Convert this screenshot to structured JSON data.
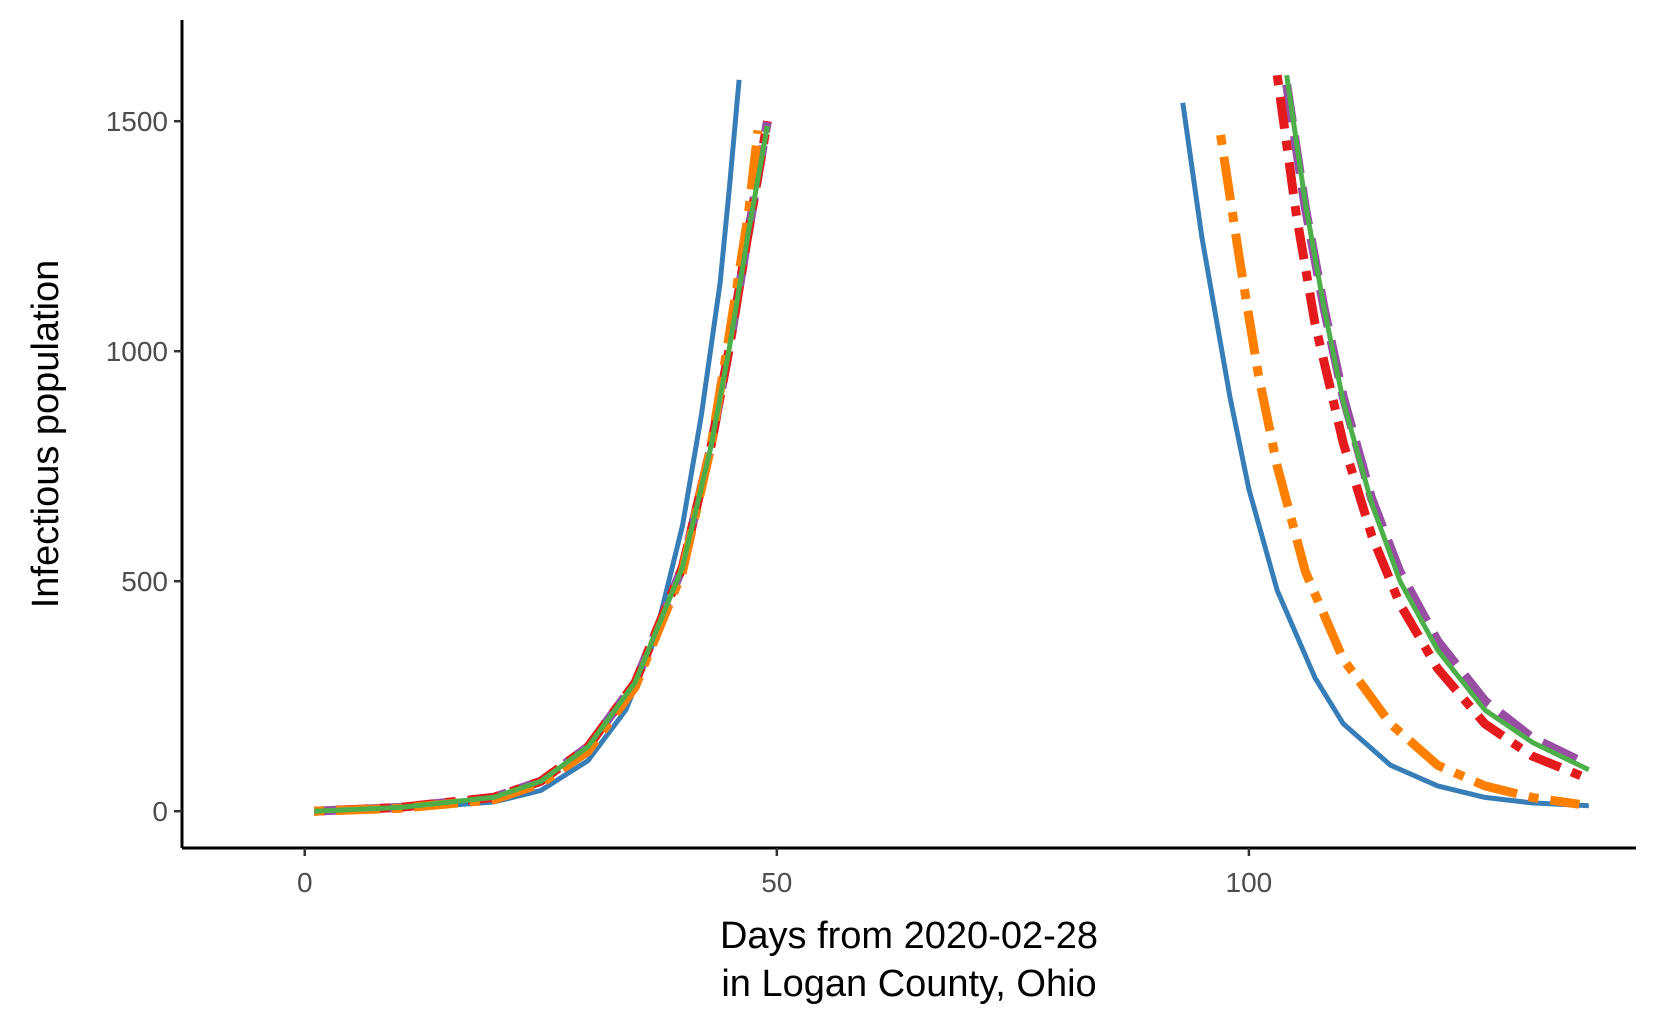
{
  "chart_data": {
    "type": "line",
    "title": "",
    "xlabel_lines": [
      "Days from 2020-02-28",
      "in Logan County, Ohio"
    ],
    "ylabel": "Infectious population",
    "xlim": [
      -13,
      141
    ],
    "ylim": [
      -80,
      1720
    ],
    "x_ticks": [
      0,
      50,
      100
    ],
    "y_ticks": [
      0,
      500,
      1000,
      1500
    ],
    "grid": false,
    "legend": "none",
    "series": [
      {
        "color": "#377EB8",
        "dash": "solid",
        "width": 5,
        "segments": [
          {
            "x": [
              1,
              10,
              20,
              25,
              30,
              34,
              37,
              40,
              42,
              44,
              45,
              46
            ],
            "y": [
              0,
              5,
              20,
              45,
              110,
              220,
              370,
              620,
              860,
              1150,
              1360,
              1590
            ]
          },
          {
            "x": [
              93,
              95,
              98,
              100,
              103,
              107,
              110,
              115,
              120,
              125,
              130,
              136
            ],
            "y": [
              1540,
              1250,
              900,
              700,
              480,
              290,
              190,
              100,
              55,
              30,
              18,
              12
            ]
          }
        ]
      },
      {
        "color": "#984EA3",
        "dash": "long-dash",
        "width": 9,
        "segments": [
          {
            "x": [
              1,
              10,
              20,
              25,
              30,
              35,
              40,
              43,
              45,
              47,
              49
            ],
            "y": [
              0,
              8,
              30,
              65,
              140,
              280,
              530,
              790,
              1010,
              1260,
              1500
            ]
          },
          {
            "x": [
              104,
              106,
              108,
              110,
              113,
              116,
              120,
              125,
              130,
              136
            ],
            "y": [
              1580,
              1310,
              1090,
              900,
              680,
              520,
              370,
              240,
              160,
              100
            ]
          }
        ]
      },
      {
        "color": "#E41A1C",
        "dash": "dot-dash",
        "width": 9,
        "segments": [
          {
            "x": [
              1,
              10,
              20,
              25,
              30,
              35,
              40,
              43,
              45,
              47,
              49
            ],
            "y": [
              0,
              8,
              30,
              65,
              140,
              280,
              530,
              790,
              1010,
              1260,
              1500
            ]
          },
          {
            "x": [
              103,
              105,
              107,
              110,
              113,
              116,
              120,
              125,
              130,
              136
            ],
            "y": [
              1600,
              1300,
              1060,
              800,
              600,
              450,
              310,
              190,
              120,
              70
            ]
          }
        ]
      },
      {
        "color": "#FF7F00",
        "dash": "long-dot-dash",
        "width": 9,
        "segments": [
          {
            "x": [
              1,
              10,
              20,
              25,
              30,
              35,
              40,
              43,
              45,
              47,
              48
            ],
            "y": [
              0,
              6,
              25,
              60,
              130,
              270,
              520,
              790,
              1040,
              1300,
              1480
            ]
          },
          {
            "x": [
              97,
              99,
              101,
              103,
              106,
              110,
              115,
              120,
              125,
              130,
              135
            ],
            "y": [
              1470,
              1200,
              950,
              750,
              520,
              330,
              190,
              100,
              55,
              30,
              15
            ]
          }
        ]
      },
      {
        "color": "#4DAF4A",
        "dash": "solid",
        "width": 5,
        "segments": [
          {
            "x": [
              1,
              10,
              20,
              25,
              30,
              35,
              40,
              43,
              45,
              47,
              49
            ],
            "y": [
              0,
              8,
              30,
              65,
              140,
              280,
              530,
              790,
              1010,
              1260,
              1490
            ]
          },
          {
            "x": [
              104,
              106,
              108,
              110,
              113,
              116,
              120,
              125,
              130,
              136
            ],
            "y": [
              1600,
              1320,
              1090,
              890,
              670,
              500,
              350,
              220,
              150,
              90
            ]
          }
        ]
      }
    ]
  }
}
